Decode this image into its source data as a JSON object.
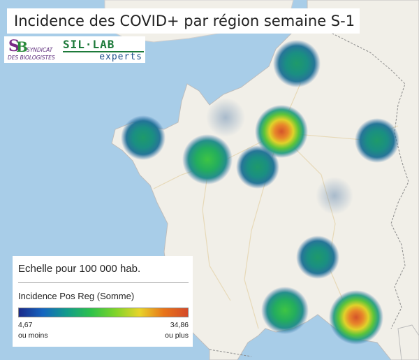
{
  "title": "Incidence des COVID+ par région semaine S-1",
  "logos": {
    "syndicat_line1": "SYNDICAT",
    "syndicat_line2": "DES BIOLOGISTES",
    "sil_top": "SIL·LAB",
    "sil_bottom": "experts"
  },
  "legend": {
    "title": "Echelle pour 100 000 hab.",
    "field": "Incidence Pos Reg (Somme)",
    "min_value": "4,67",
    "min_label": "ou moins",
    "max_value": "34,86",
    "max_label": "ou plus",
    "gradient_colors": [
      "#1a2a8a",
      "#1565c0",
      "#129c8a",
      "#2ec24a",
      "#7fd42a",
      "#e8d42a",
      "#e8751a",
      "#d44a2a"
    ]
  },
  "map_colors": {
    "sea": "#a8cde8",
    "land": "#f1efe8",
    "border": "#8a8a8a"
  }
}
